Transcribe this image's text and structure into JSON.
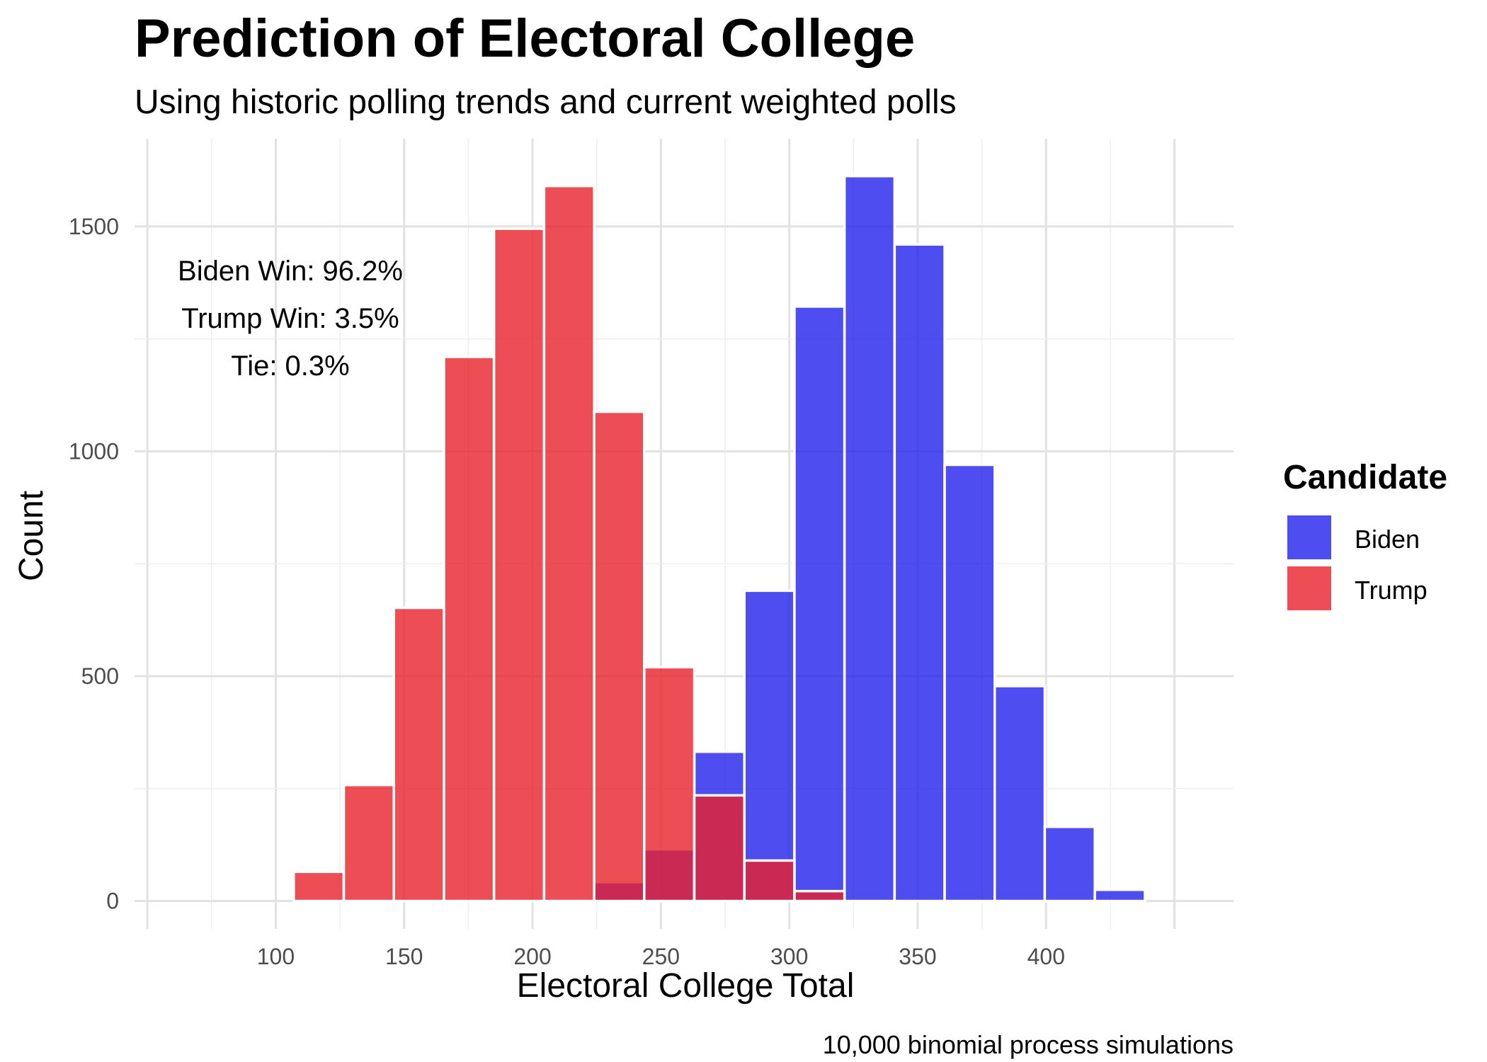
{
  "title": "Prediction of Electoral College",
  "subtitle": "Using historic polling trends and current weighted polls",
  "caption": "10,000 binomial process simulations",
  "annotations": [
    "Biden Win: 96.2%",
    "Trump Win: 3.5%",
    "Tie: 0.3%"
  ],
  "legend": {
    "title": "Candidate",
    "position": "right",
    "items": [
      {
        "label": "Biden",
        "color": "#2020ec"
      },
      {
        "label": "Trump",
        "color": "#e8202a"
      }
    ]
  },
  "chart_data": {
    "type": "bar",
    "title": "Prediction of Electoral College",
    "subtitle": "Using historic polling trends and current weighted polls",
    "xlabel": "Electoral College Total",
    "ylabel": "Count",
    "xlim": [
      45,
      473
    ],
    "ylim": [
      -62,
      1695
    ],
    "x_ticks": [
      100,
      150,
      200,
      250,
      300,
      350,
      400
    ],
    "y_ticks": [
      0,
      500,
      1000,
      1500
    ],
    "grid": true,
    "legend_position": "right",
    "bin_width": 19.5,
    "bins": [
      {
        "x_start": 107,
        "x_end": 126.5
      },
      {
        "x_start": 126.5,
        "x_end": 146
      },
      {
        "x_start": 146,
        "x_end": 165.5
      },
      {
        "x_start": 165.5,
        "x_end": 185
      },
      {
        "x_start": 185,
        "x_end": 204.5
      },
      {
        "x_start": 204.5,
        "x_end": 224
      },
      {
        "x_start": 224,
        "x_end": 243.5
      },
      {
        "x_start": 243.5,
        "x_end": 263
      },
      {
        "x_start": 263,
        "x_end": 282.5
      },
      {
        "x_start": 282.5,
        "x_end": 302
      },
      {
        "x_start": 302,
        "x_end": 321.5
      },
      {
        "x_start": 321.5,
        "x_end": 341
      },
      {
        "x_start": 341,
        "x_end": 360.5
      },
      {
        "x_start": 360.5,
        "x_end": 380
      },
      {
        "x_start": 380,
        "x_end": 399.5
      },
      {
        "x_start": 399.5,
        "x_end": 419
      },
      {
        "x_start": 419,
        "x_end": 438.5
      }
    ],
    "series": [
      {
        "name": "Trump",
        "color": "#e8202a",
        "values": [
          65,
          258,
          652,
          1210,
          1495,
          1590,
          1088,
          520,
          235,
          90,
          22,
          0,
          0,
          0,
          0,
          0,
          0
        ]
      },
      {
        "name": "Biden",
        "color": "#2020ec",
        "values": [
          0,
          0,
          0,
          0,
          0,
          0,
          42,
          115,
          332,
          690,
          1322,
          1612,
          1460,
          970,
          478,
          165,
          25
        ]
      }
    ]
  }
}
